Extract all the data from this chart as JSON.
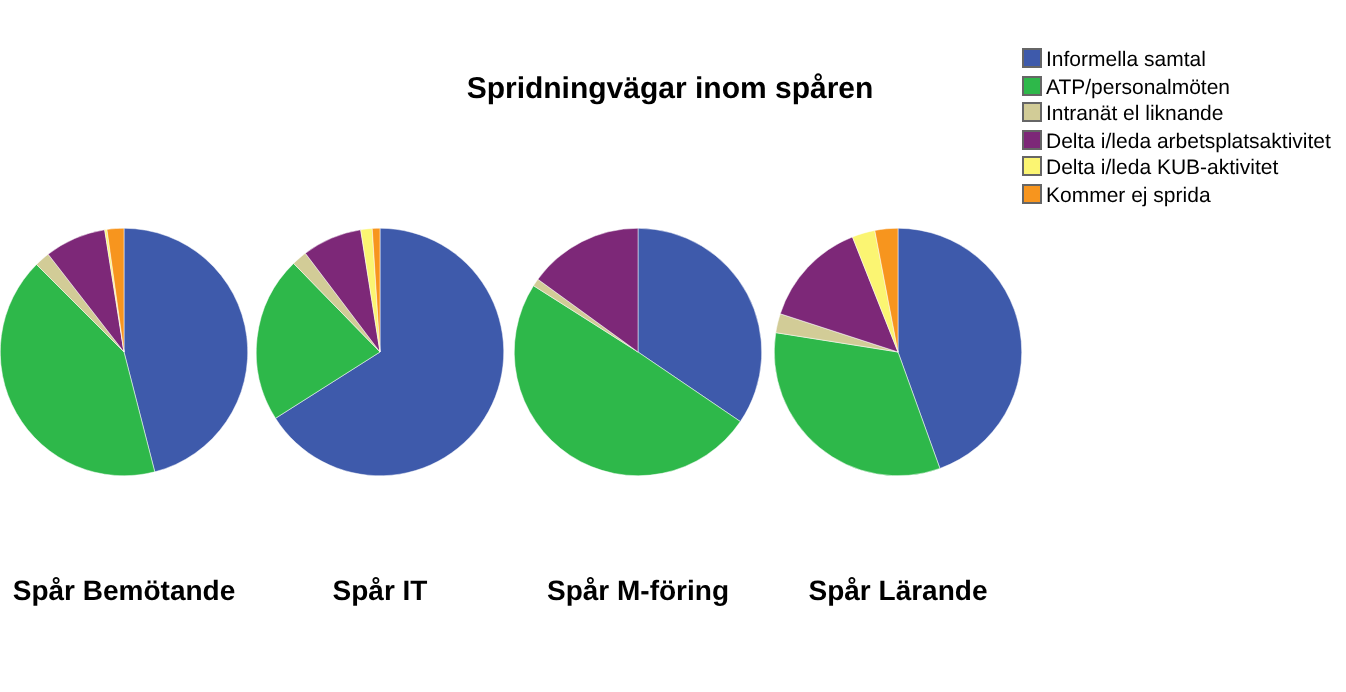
{
  "chart_data": {
    "type": "pie",
    "title": "Spridningvägar inom spåren",
    "legend": "top right",
    "categories": [
      "Informella samtal",
      "ATP/personalmöten",
      "Intranät el liknande",
      "Delta i/leda arbetsplatsaktivitet",
      "Delta i/leda KUB-aktivitet",
      "Kommer ej sprida"
    ],
    "colors": [
      "#3e5aab",
      "#2eb84a",
      "#d2cc97",
      "#7d2878",
      "#fbf572",
      "#f7951e"
    ],
    "series": [
      {
        "name": "Spår Bemötande",
        "values": [
          46,
          41.5,
          2,
          8,
          0.3,
          2.2
        ]
      },
      {
        "name": "Spår IT",
        "values": [
          66,
          21.7,
          2,
          7.8,
          1.5,
          1
        ]
      },
      {
        "name": "Spår M-föring",
        "values": [
          34.5,
          49.5,
          1,
          15,
          0,
          0
        ]
      },
      {
        "name": "Spår Lärande",
        "values": [
          44.5,
          33,
          2.5,
          14,
          3,
          3
        ]
      }
    ]
  }
}
